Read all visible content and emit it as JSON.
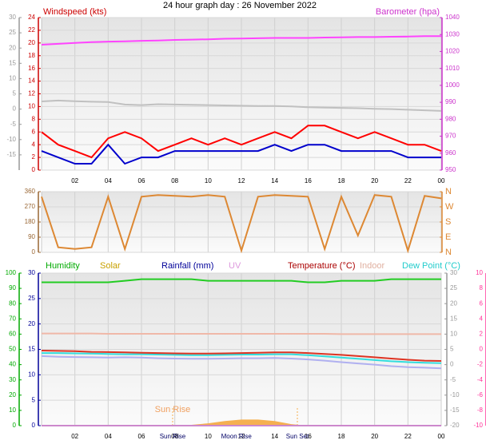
{
  "chart_data": [
    {
      "type": "line",
      "title": "24 hour graph day : 26 November 2022",
      "y_label": "Windspeed (kts)",
      "y2_label": "Barometer (hpa)",
      "x": [
        0,
        1,
        2,
        3,
        4,
        5,
        6,
        7,
        8,
        9,
        10,
        11,
        12,
        13,
        14,
        15,
        16,
        17,
        18,
        19,
        20,
        21,
        22,
        23,
        24
      ],
      "xlim": [
        0,
        24
      ],
      "xticks": [
        {
          "value": 2,
          "label": "02"
        },
        {
          "value": 4,
          "label": "04"
        },
        {
          "value": 6,
          "label": "06"
        },
        {
          "value": 8,
          "label": "08"
        },
        10,
        12,
        14,
        16,
        18,
        20,
        22,
        {
          "value": 24,
          "label": "00"
        }
      ],
      "ylim": [
        0,
        24
      ],
      "yticks": [
        0,
        2,
        4,
        6,
        8,
        10,
        12,
        14,
        16,
        18,
        20,
        22,
        24
      ],
      "y2lim": [
        950,
        1040
      ],
      "y2ticks": [
        950,
        960,
        970,
        980,
        990,
        1000,
        1010,
        1020,
        1030,
        1040
      ],
      "y3lim": [
        -20,
        30
      ],
      "y3ticks": [
        -15,
        -10,
        -5,
        0,
        5,
        10,
        15,
        20,
        25,
        30
      ],
      "axis_colors": {
        "y": "#cc0000",
        "y2": "#cc33cc",
        "y3": "#999999"
      },
      "grid": true,
      "series": [
        {
          "color": "#ff44ff",
          "axis": "y2",
          "values": [
            1024,
            1024.5,
            1025,
            1025.5,
            1025.8,
            1026,
            1026.3,
            1026.5,
            1026.8,
            1027,
            1027.2,
            1027.5,
            1027.6,
            1027.8,
            1028,
            1028,
            1028,
            1028.2,
            1028.3,
            1028.5,
            1028.5,
            1028.7,
            1028.8,
            1029,
            1029
          ]
        },
        {
          "color": "#c0c0c0",
          "axis": "y3",
          "values": [
            2.5,
            2.8,
            2.6,
            2.4,
            2.3,
            1.5,
            1.3,
            1.6,
            1.5,
            1.4,
            1.3,
            1.2,
            1.1,
            1.0,
            1.0,
            0.9,
            0.6,
            0.5,
            0.4,
            0.3,
            0.1,
            0,
            -0.2,
            -0.4,
            -0.6
          ]
        },
        {
          "color": "#ff0000",
          "axis": "y",
          "values": [
            6,
            4,
            3,
            2,
            5,
            6,
            5,
            3,
            4,
            5,
            4,
            5,
            4,
            5,
            6,
            5,
            7,
            7,
            6,
            5,
            6,
            5,
            4,
            4,
            3
          ]
        },
        {
          "color": "#0000cc",
          "axis": "y",
          "values": [
            3,
            2,
            1,
            1,
            4,
            1,
            2,
            2,
            3,
            3,
            3,
            3,
            3,
            3,
            4,
            3,
            4,
            4,
            3,
            3,
            3,
            3,
            2,
            2,
            2
          ]
        }
      ]
    },
    {
      "type": "line",
      "x": [
        0,
        1,
        2,
        3,
        4,
        5,
        6,
        7,
        8,
        9,
        10,
        11,
        12,
        13,
        14,
        15,
        16,
        17,
        18,
        19,
        20,
        21,
        22,
        23,
        24
      ],
      "xlim": [
        0,
        24
      ],
      "xticks": [
        {
          "value": 2,
          "label": "02"
        },
        {
          "value": 4,
          "label": "04"
        },
        {
          "value": 6,
          "label": "06"
        },
        {
          "value": 8,
          "label": "08"
        },
        10,
        12,
        14,
        16,
        18,
        20,
        22,
        {
          "value": 24,
          "label": "00"
        }
      ],
      "ylim": [
        0,
        360
      ],
      "yticks": [
        0,
        90,
        180,
        270,
        360
      ],
      "y2lim": [
        0,
        360
      ],
      "y2ticks": [
        {
          "value": 0,
          "label": "N"
        },
        {
          "value": 90,
          "label": "E"
        },
        {
          "value": 180,
          "label": "S"
        },
        {
          "value": 270,
          "label": "W"
        },
        {
          "value": 360,
          "label": "N"
        }
      ],
      "axis_colors": {
        "y": "#996633",
        "y2": "#dd8833"
      },
      "grid": true,
      "series": [
        {
          "color": "#dd8833",
          "axis": "y",
          "values": [
            330,
            30,
            20,
            30,
            330,
            20,
            330,
            340,
            335,
            330,
            340,
            330,
            10,
            330,
            340,
            335,
            330,
            20,
            330,
            100,
            340,
            330,
            10,
            335,
            320
          ]
        }
      ]
    },
    {
      "type": "line",
      "x": [
        0,
        1,
        2,
        3,
        4,
        5,
        6,
        7,
        8,
        9,
        10,
        11,
        12,
        13,
        14,
        15,
        16,
        17,
        18,
        19,
        20,
        21,
        22,
        23,
        24
      ],
      "xlim": [
        0,
        24
      ],
      "xticks": [
        {
          "value": 2,
          "label": "02"
        },
        {
          "value": 4,
          "label": "04"
        },
        {
          "value": 6,
          "label": "06"
        },
        {
          "value": 8,
          "label": "08"
        },
        10,
        12,
        14,
        16,
        18,
        20,
        22,
        {
          "value": 24,
          "label": "00"
        }
      ],
      "ylim": [
        0,
        100
      ],
      "yticks": [
        0,
        10,
        20,
        30,
        40,
        50,
        60,
        70,
        80,
        90,
        100
      ],
      "y2lim": [
        0,
        30
      ],
      "y2ticks": [
        0,
        5,
        10,
        15,
        20,
        25,
        30
      ],
      "y3lim": [
        -20,
        30
      ],
      "y3ticks": [
        -20,
        -15,
        -10,
        -5,
        0,
        5,
        10,
        15,
        20,
        25,
        30
      ],
      "y4lim": [
        -10,
        10
      ],
      "y4ticks": [
        -10,
        -8,
        -6,
        -4,
        -2,
        0,
        2,
        4,
        6,
        8,
        10
      ],
      "axis_colors": {
        "y": "#00aa00",
        "y2": "#000099",
        "y3": "#999999",
        "y4": "#ff3399"
      },
      "grid": true,
      "marker_label": "Sun Rise",
      "annotations": [
        {
          "label": "Sun Rise",
          "x": 7.87
        },
        {
          "label": "Moon Rise",
          "x": 11.7
        },
        {
          "label": "Sun Set",
          "x": 15.36
        }
      ],
      "series": [
        {
          "name": "Humidity",
          "color": "#22cc22",
          "axis": "y",
          "values": [
            94,
            94,
            94,
            94,
            94,
            95,
            96,
            96,
            96,
            96,
            95,
            95,
            95,
            95,
            95,
            95,
            94,
            94,
            95,
            95,
            95,
            96,
            96,
            96,
            96
          ]
        },
        {
          "name": "Solar",
          "color": "#f5b050",
          "axis": "y",
          "fill": true,
          "values": [
            0,
            0,
            0,
            0,
            0,
            0,
            0,
            0,
            0,
            0.5,
            1.5,
            3,
            4,
            4,
            3,
            1,
            0,
            0,
            0,
            0,
            0,
            0,
            0,
            0,
            0
          ]
        },
        {
          "name": "Rainfall (mm)",
          "color": "#000099",
          "axis": "y2",
          "values": [
            0,
            0,
            0,
            0,
            0,
            0,
            0,
            0,
            0,
            0,
            0,
            0,
            0,
            0,
            0,
            0,
            0,
            0,
            0,
            0,
            0,
            0,
            0,
            0,
            0
          ]
        },
        {
          "name": "UV",
          "color": "#cc88cc",
          "axis": "y",
          "values": [
            0,
            0,
            0,
            0,
            0,
            0,
            0,
            0,
            0,
            0,
            0,
            0,
            0,
            0,
            0,
            0,
            0,
            0,
            0,
            0,
            0,
            0,
            0,
            0,
            0
          ]
        },
        {
          "name": "Indoor",
          "color": "#f0b8a8",
          "axis": "y3",
          "values": [
            10.2,
            10.2,
            10.2,
            10.2,
            10.1,
            10.1,
            10.1,
            10.1,
            10.1,
            10.1,
            10.1,
            10.1,
            10.1,
            10.1,
            10.1,
            10.1,
            10.1,
            10.1,
            10.0,
            10.0,
            10.0,
            10.0,
            10.0,
            10.0,
            10.0
          ]
        },
        {
          "color": "#b0b0f0",
          "axis": "y3",
          "values": [
            2.8,
            2.6,
            2.5,
            2.4,
            2.3,
            2.4,
            2.3,
            2.1,
            2.0,
            1.9,
            1.9,
            2.0,
            2.1,
            2.1,
            2.2,
            2.0,
            1.7,
            1.3,
            0.8,
            0.4,
            0,
            -0.5,
            -0.8,
            -1.0,
            -1.2
          ]
        },
        {
          "name": "Dew Point (°C)",
          "color": "#33dddd",
          "axis": "y3",
          "values": [
            3.8,
            3.8,
            3.7,
            3.6,
            3.5,
            3.4,
            3.4,
            3.3,
            3.2,
            3.1,
            3.1,
            3.2,
            3.3,
            3.3,
            3.4,
            3.4,
            3.1,
            2.7,
            2.3,
            1.9,
            1.5,
            1.1,
            0.8,
            0.6,
            0.5
          ]
        },
        {
          "name": "Temperature (°C)",
          "color": "#dd3322",
          "axis": "y3",
          "values": [
            4.6,
            4.5,
            4.4,
            4.2,
            4.1,
            4.0,
            3.9,
            3.8,
            3.7,
            3.6,
            3.6,
            3.7,
            3.8,
            3.9,
            4.0,
            4.0,
            3.8,
            3.5,
            3.2,
            2.8,
            2.4,
            2.0,
            1.6,
            1.3,
            1.2
          ]
        }
      ]
    }
  ]
}
